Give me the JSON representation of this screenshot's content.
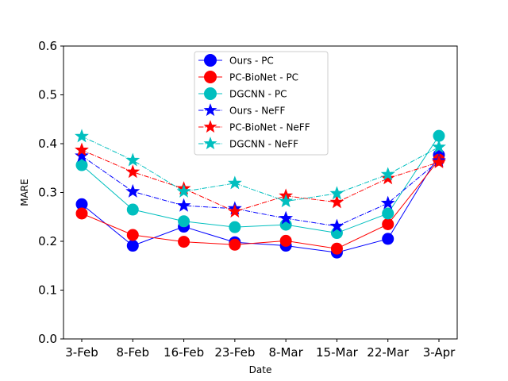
{
  "chart_data": {
    "type": "line",
    "title": "",
    "xlabel": "Date",
    "ylabel": "MARE",
    "ylim": [
      0.0,
      0.6
    ],
    "yticks": [
      "0.0",
      "0.1",
      "0.2",
      "0.3",
      "0.4",
      "0.5",
      "0.6"
    ],
    "categories": [
      "3-Feb",
      "8-Feb",
      "16-Feb",
      "23-Feb",
      "8-Mar",
      "15-Mar",
      "22-Mar",
      "3-Apr"
    ],
    "legend_position": "upper-center",
    "series": [
      {
        "name": "Ours - PC",
        "color": "#0000ff",
        "linestyle": "solid",
        "marker": "circle",
        "values": [
          0.276,
          0.191,
          0.23,
          0.198,
          0.191,
          0.177,
          0.205,
          0.377
        ]
      },
      {
        "name": "PC-BioNet - PC",
        "color": "#ff0000",
        "linestyle": "solid",
        "marker": "circle",
        "values": [
          0.257,
          0.213,
          0.199,
          0.193,
          0.201,
          0.185,
          0.235,
          0.367
        ]
      },
      {
        "name": "DGCNN - PC",
        "color": "#00bfbf",
        "linestyle": "solid",
        "marker": "circle",
        "values": [
          0.356,
          0.265,
          0.241,
          0.229,
          0.234,
          0.217,
          0.257,
          0.416
        ]
      },
      {
        "name": "Ours - NeFF",
        "color": "#0000ff",
        "linestyle": "dashdot",
        "marker": "star",
        "values": [
          0.375,
          0.302,
          0.273,
          0.267,
          0.247,
          0.231,
          0.278,
          0.365
        ]
      },
      {
        "name": "PC-BioNet - NeFF",
        "color": "#ff0000",
        "linestyle": "dashdot",
        "marker": "star",
        "values": [
          0.387,
          0.342,
          0.308,
          0.261,
          0.293,
          0.28,
          0.329,
          0.362
        ]
      },
      {
        "name": "DGCNN - NeFF",
        "color": "#00bfbf",
        "linestyle": "dashdot",
        "marker": "star",
        "values": [
          0.415,
          0.366,
          0.302,
          0.319,
          0.282,
          0.298,
          0.337,
          0.393
        ]
      }
    ]
  }
}
